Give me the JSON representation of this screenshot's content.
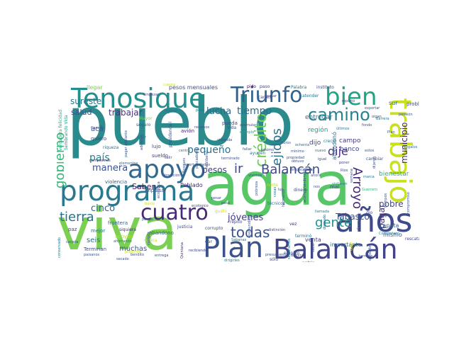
{
  "words": [
    {
      "text": "pueblo",
      "color": "#2a8a8c",
      "rot": 0
    },
    {
      "text": "agua",
      "color": "#56c667",
      "rot": 0
    },
    {
      "text": "viva",
      "color": "#7ad151",
      "rot": 0
    },
    {
      "text": "programa",
      "color": "#2a788e",
      "rot": 0
    },
    {
      "text": "trabajo",
      "color": "#c8e020",
      "rot": 1
    },
    {
      "text": "Plan",
      "color": "#3b528b",
      "rot": 0
    },
    {
      "text": "Balancán",
      "color": "#414487",
      "rot": 0
    },
    {
      "text": "años",
      "color": "#3e4a89",
      "rot": 0
    },
    {
      "text": "Tenosique",
      "color": "#21908d",
      "rot": 0
    },
    {
      "text": "Triunfo",
      "color": "#33638d",
      "rot": 0
    },
    {
      "text": "apoyo",
      "color": "#31688e",
      "rot": 0
    },
    {
      "text": "cuatro",
      "color": "#482878",
      "rot": 0
    },
    {
      "text": "bien",
      "color": "#20a486",
      "rot": 0
    },
    {
      "text": "camino",
      "color": "#26828e",
      "rot": 0
    },
    {
      "text": "crédito",
      "color": "#6ece58",
      "rot": 1
    },
    {
      "text": "ejidos",
      "color": "#2c728e",
      "rot": 1
    },
    {
      "text": "Arroyo",
      "color": "#472d7b",
      "rot": 1
    },
    {
      "text": "Balancán",
      "color": "#3e4989",
      "rot": 0
    },
    {
      "text": "gobierno",
      "color": "#35b779",
      "rot": 1
    },
    {
      "text": "tierra",
      "color": "#2d708e",
      "rot": 0
    },
    {
      "text": "todas",
      "color": "#3b528b",
      "rot": 0
    },
    {
      "text": "gente",
      "color": "#21918c",
      "rot": 0
    },
    {
      "text": "ir",
      "color": "#3e4989",
      "rot": 0
    },
    {
      "text": "dije",
      "color": "#46327e",
      "rot": 0
    },
    {
      "text": "tiempo",
      "color": "#2e6e8e",
      "rot": 0
    },
    {
      "text": "lucha",
      "color": "#30698e",
      "rot": 0
    },
    {
      "text": "pequeño",
      "color": "#2d708e",
      "rot": 0
    },
    {
      "text": "manera",
      "color": "#3b528b",
      "rot": 0
    },
    {
      "text": "país",
      "color": "#26828e",
      "rot": 0
    },
    {
      "text": "cinco",
      "color": "#31688e",
      "rot": 0
    },
    {
      "text": "jóvenes",
      "color": "#443983",
      "rot": 0
    },
    {
      "text": "pesos",
      "color": "#404688",
      "rot": 0
    },
    {
      "text": "municipio",
      "color": "#481f70",
      "rot": 1
    },
    {
      "text": "pagar",
      "color": "#472d7b",
      "rot": 1
    },
    {
      "text": "Tabasco",
      "color": "#3b528b",
      "rot": 0
    },
    {
      "text": "pobre",
      "color": "#404688",
      "rot": 0
    },
    {
      "text": "sureste",
      "color": "#2a788e",
      "rot": 0
    },
    {
      "text": "trabajar",
      "color": "#46337f",
      "rot": 0
    },
    {
      "text": "salud",
      "color": "#3e4a89",
      "rot": 0
    },
    {
      "text": "Saben",
      "color": "#471164",
      "rot": 0
    },
    {
      "text": "seis",
      "color": "#2c728e",
      "rot": 0
    },
    {
      "text": "muchas",
      "color": "#39568c",
      "rot": 0
    },
    {
      "text": "acá",
      "color": "#3b528b",
      "rot": 0
    },
    {
      "text": "dijo",
      "color": "#414487",
      "rot": 0
    },
    {
      "text": "banco",
      "color": "#414487",
      "rot": 0
    },
    {
      "text": "campo",
      "color": "#453882",
      "rot": 0
    },
    {
      "text": "región",
      "color": "#1fa188",
      "rot": 0
    },
    {
      "text": "entregar",
      "color": "#2e6f8e",
      "rot": 0
    },
    {
      "text": "Zapata",
      "color": "#355f8d",
      "rot": 0
    },
    {
      "text": "bienestar",
      "color": "#29af7f",
      "rot": 0
    },
    {
      "text": "sur",
      "color": "#2f6c8e",
      "rot": 0
    },
    {
      "text": "problema",
      "color": "#3f4788",
      "rot": 0
    },
    {
      "text": "abandonó",
      "color": "#2e6e8e",
      "rot": 1
    },
    {
      "text": "venta",
      "color": "#433e85",
      "rot": 0
    },
    {
      "text": "importante",
      "color": "#2d708e",
      "rot": 0
    },
    {
      "text": "mismo",
      "color": "#3c508b",
      "rot": 0
    },
    {
      "text": "pesos mensuales",
      "color": "#3b528b",
      "rot": 0
    },
    {
      "text": "llegar",
      "color": "#7ad151",
      "rot": 0
    },
    {
      "text": "avión",
      "color": "#481a6c",
      "rot": 0
    },
    {
      "text": "pueda",
      "color": "#3f4889",
      "rot": 0
    },
    {
      "text": "Poblado",
      "color": "#482878",
      "rot": 0
    },
    {
      "text": "mal",
      "color": "#3b528b",
      "rot": 0
    },
    {
      "text": "frontera",
      "color": "#31688e",
      "rot": 0
    },
    {
      "text": "abandono",
      "color": "#39568c",
      "rot": 0
    },
    {
      "text": "paz",
      "color": "#3e4a89",
      "rot": 0
    },
    {
      "text": "mejor",
      "color": "#2c728e",
      "rot": 0
    },
    {
      "text": "Terminan",
      "color": "#3b528b",
      "rot": 0
    },
    {
      "text": "lujo",
      "color": "#3e4989",
      "rot": 0
    },
    {
      "text": "sueldo",
      "color": "#433e85",
      "rot": 0
    },
    {
      "text": "quiero",
      "color": "#3f4788",
      "rot": 0
    },
    {
      "text": "riqueza",
      "color": "#2d708e",
      "rot": 0
    },
    {
      "text": "violencia",
      "color": "#355f8d",
      "rot": 0
    },
    {
      "text": "impulsar",
      "color": "#3b528b",
      "rot": 0
    },
    {
      "text": "apoyar",
      "color": "#b5de2b",
      "rot": 0
    },
    {
      "text": "ayuden",
      "color": "#2a788e",
      "rot": 0
    },
    {
      "text": "pido",
      "color": "#440154",
      "rot": 0
    },
    {
      "text": "Palabra",
      "color": "#2c728e",
      "rot": 0
    },
    {
      "text": "instituto",
      "color": "#3b528b",
      "rot": 0
    },
    {
      "text": "dinero",
      "color": "#3e4989",
      "rot": 0
    },
    {
      "text": "técnicos",
      "color": "#2d708e",
      "rot": 0
    },
    {
      "text": "rescatar",
      "color": "#3f4889",
      "rot": 0
    },
    {
      "text": "Compañero",
      "color": "#2a788e",
      "rot": 0
    },
    {
      "text": "empleo",
      "color": "#3b528b",
      "rot": 0
    },
    {
      "text": "vez",
      "color": "#482878",
      "rot": 0
    },
    {
      "text": "dio",
      "color": "#3e4989",
      "rot": 0
    },
    {
      "text": "paso",
      "color": "#3e4989",
      "rot": 0
    },
    {
      "text": "carros",
      "color": "#433e85",
      "rot": 0
    },
    {
      "text": "atender",
      "color": "#2c728e",
      "rot": 0
    },
    {
      "text": "dar",
      "color": "#39568c",
      "rot": 0
    },
    {
      "text": "sólo",
      "color": "#404688",
      "rot": 0
    },
    {
      "text": "corrupto",
      "color": "#3b528b",
      "rot": 0
    },
    {
      "text": "justicia",
      "color": "#3e4989",
      "rot": 0
    },
    {
      "text": "seguro",
      "color": "#3b528b",
      "rot": 0
    },
    {
      "text": "llueve",
      "color": "#2e6e8e",
      "rot": 0
    },
    {
      "text": "Mayor",
      "color": "#7ad151",
      "rot": 0
    },
    {
      "text": "presidencial",
      "color": "#3b528b",
      "rot": 1
    },
    {
      "text": "norte",
      "color": "#b5de2b",
      "rot": 0
    },
    {
      "text": "gusto",
      "color": "#d0e11c",
      "rot": 0
    },
    {
      "text": "patria",
      "color": "#3b528b",
      "rot": 0
    },
    {
      "text": "terminó",
      "color": "#2c728e",
      "rot": 0
    },
    {
      "text": "creció",
      "color": "#2a788e",
      "rot": 0
    },
    {
      "text": "repito",
      "color": "#3e4989",
      "rot": 0
    },
    {
      "text": "cambiar",
      "color": "#39568c",
      "rot": 0
    },
    {
      "text": "Guerrero",
      "color": "#35b779",
      "rot": 0
    },
    {
      "text": "Vida",
      "color": "#3b528b",
      "rot": 0
    },
    {
      "text": "Sembrando Vida",
      "color": "#1fa188",
      "rot": 1
    },
    {
      "text": "verdadera felicidad",
      "color": "#27ad81",
      "rot": 1
    },
    {
      "text": "bendito",
      "color": "#3b528b",
      "rot": 0
    },
    {
      "text": "paisanos",
      "color": "#39568c",
      "rot": 0
    },
    {
      "text": "entrega",
      "color": "#3b528b",
      "rot": 0
    },
    {
      "text": "empezar",
      "color": "#433e85",
      "rot": 0
    },
    {
      "text": "pesar",
      "color": "#3e4989",
      "rot": 0
    },
    {
      "text": "siquiera",
      "color": "#482878",
      "rot": 0
    },
    {
      "text": "nunca",
      "color": "#c8e020",
      "rot": 0
    },
    {
      "text": "fallar",
      "color": "#3b528b",
      "rot": 0
    },
    {
      "text": "ejemplo",
      "color": "#1fa188",
      "rot": 0
    },
    {
      "text": "Cancún",
      "color": "#3b528b",
      "rot": 0
    },
    {
      "text": "cumplir",
      "color": "#404688",
      "rot": 1
    },
    {
      "text": "carjeta",
      "color": "#3b528b",
      "rot": 0
    },
    {
      "text": "ahorrando",
      "color": "#2d708e",
      "rot": 0
    },
    {
      "text": "campesinos",
      "color": "#482878",
      "rot": 0
    },
    {
      "text": "centro",
      "color": "#2a788e",
      "rot": 0
    },
    {
      "text": "pasar",
      "color": "#3e4989",
      "rot": 0
    },
    {
      "text": "nuevo",
      "color": "#2c728e",
      "rot": 0
    },
    {
      "text": "pensión",
      "color": "#3b528b",
      "rot": 0
    },
    {
      "text": "conservado",
      "color": "#2a788e",
      "rot": 1
    },
    {
      "text": "obtuvo",
      "color": "#3e4989",
      "rot": 0
    },
    {
      "text": "poner",
      "color": "#433e85",
      "rot": 0
    },
    {
      "text": "Ríos",
      "color": "#3b528b",
      "rot": 0
    },
    {
      "text": "cosas",
      "color": "#2d708e",
      "rot": 1
    },
    {
      "text": "hermanos",
      "color": "#3b528b",
      "rot": 1
    },
    {
      "text": "pasa",
      "color": "#3e4989",
      "rot": 0
    },
    {
      "text": "Bosques",
      "color": "#39568c",
      "rot": 1
    },
    {
      "text": "últimos",
      "color": "#2c728e",
      "rot": 0
    },
    {
      "text": "fondo",
      "color": "#3b528b",
      "rot": 0
    },
    {
      "text": "recibiendo",
      "color": "#404688",
      "rot": 0
    },
    {
      "text": "acumular",
      "color": "#3b528b",
      "rot": 0
    },
    {
      "text": "distinción",
      "color": "#3e4989",
      "rot": 0
    },
    {
      "text": "llamada",
      "color": "#2a788e",
      "rot": 0
    },
    {
      "text": "compromiso",
      "color": "#3b528b",
      "rot": 1
    },
    {
      "text": "dominio",
      "color": "#433e85",
      "rot": 0
    },
    {
      "text": "oportunidad",
      "color": "#3b528b",
      "rot": 1
    },
    {
      "text": "cuenta",
      "color": "#d0e11c",
      "rot": 0
    },
    {
      "text": "plata",
      "color": "#3e4989",
      "rot": 0
    },
    {
      "text": "marca",
      "color": "#2c728e",
      "rot": 0
    },
    {
      "text": "adelante",
      "color": "#3b528b",
      "rot": 1
    },
    {
      "text": "elementos",
      "color": "#2d708e",
      "rot": 0
    },
    {
      "text": "pagar adelante",
      "color": "#39568c",
      "rot": 1
    },
    {
      "text": "Quintana",
      "color": "#482878",
      "rot": 1
    },
    {
      "text": "reportó",
      "color": "#3b528b",
      "rot": 0
    },
    {
      "text": "visitaron",
      "color": "#2a788e",
      "rot": 0
    },
    {
      "text": "pésimo",
      "color": "#3e4989",
      "rot": 0
    },
    {
      "text": "mínimo",
      "color": "#3b528b",
      "rot": 0
    },
    {
      "text": "regalos",
      "color": "#2c728e",
      "rot": 0
    },
    {
      "text": "exportar",
      "color": "#3b528b",
      "rot": 0
    },
    {
      "text": "tradición",
      "color": "#3e4989",
      "rot": 0
    },
    {
      "text": "barco",
      "color": "#d0e11c",
      "rot": 0
    },
    {
      "text": "ahora",
      "color": "#3b528b",
      "rot": 0
    },
    {
      "text": "oigan",
      "color": "#3e4989",
      "rot": 0
    },
    {
      "text": "Plan",
      "color": "#39568c",
      "rot": 0
    },
    {
      "text": "plátano",
      "color": "#2a788e",
      "rot": 1
    },
    {
      "text": "Seca",
      "color": "#3b528b",
      "rot": 1
    },
    {
      "text": "deseado",
      "color": "#2c728e",
      "rot": 1
    },
    {
      "text": "tiempos",
      "color": "#3b528b",
      "rot": 0
    },
    {
      "text": "vivienda",
      "color": "#3e4989",
      "rot": 1
    },
    {
      "text": "pobreza",
      "color": "#3b528b",
      "rot": 1
    },
    {
      "text": "ecológica",
      "color": "#404688",
      "rot": 0
    },
    {
      "text": "secado",
      "color": "#3b528b",
      "rot": 0
    },
    {
      "text": "maíz",
      "color": "#2c728e",
      "rot": 0
    },
    {
      "text": "termine",
      "color": "#3e4989",
      "rot": 0
    },
    {
      "text": "empecemos",
      "color": "#3b528b",
      "rot": 0
    },
    {
      "text": "estos",
      "color": "#39568c",
      "rot": 0
    },
    {
      "text": "Barrera",
      "color": "#2a788e",
      "rot": 1
    },
    {
      "text": "semana",
      "color": "#3b528b",
      "rot": 0
    },
    {
      "text": "luz",
      "color": "#3e4989",
      "rot": 0
    },
    {
      "text": "nos",
      "color": "#3b528b",
      "rot": 0
    },
    {
      "text": "propiedad",
      "color": "#3b528b",
      "rot": 1
    },
    {
      "text": "decir",
      "color": "#d0e11c",
      "rot": 0
    },
    {
      "text": "dan",
      "color": "#3b528b",
      "rot": 0
    },
    {
      "text": "puros",
      "color": "#39568c",
      "rot": 0
    },
    {
      "text": "Sabanas",
      "color": "#2c728e",
      "rot": 1
    },
    {
      "text": "sacar",
      "color": "#3b528b",
      "rot": 0
    },
    {
      "text": "igual",
      "color": "#3e4989",
      "rot": 0
    },
    {
      "text": "dirigirles",
      "color": "#2a788e",
      "rot": 1
    },
    {
      "text": "pescadores",
      "color": "#3b528b",
      "rot": 1
    },
    {
      "text": "neoliberal",
      "color": "#3e4989",
      "rot": 0
    },
    {
      "text": "ecológico",
      "color": "#3b528b",
      "rot": 0
    },
    {
      "text": "pongo",
      "color": "#39568c",
      "rot": 0
    },
    {
      "text": "pregunta",
      "color": "#d0e11c",
      "rot": 0
    },
    {
      "text": "vivimos",
      "color": "#3b528b",
      "rot": 0
    },
    {
      "text": "ochenta",
      "color": "#2c728e",
      "rot": 0
    },
    {
      "text": "presupuesto",
      "color": "#3b528b",
      "rot": 1
    },
    {
      "text": "acompañándonos",
      "color": "#3e4989",
      "rot": 1
    },
    {
      "text": "sembramos",
      "color": "#2a788e",
      "rot": 0
    },
    {
      "text": "recursos",
      "color": "#3b528b",
      "rot": 0
    },
    {
      "text": "dijeron",
      "color": "#3e4989",
      "rot": 1
    },
    {
      "text": "oportunidades",
      "color": "#3b528b",
      "rot": 0
    },
    {
      "text": "tenemos",
      "color": "#39568c",
      "rot": 0
    },
    {
      "text": "olvidados",
      "color": "#3b528b",
      "rot": 1
    },
    {
      "text": "pese",
      "color": "#2c728e",
      "rot": 0
    },
    {
      "text": "salir",
      "color": "#3e4989",
      "rot": 0
    },
    {
      "text": "terminado",
      "color": "#3b528b",
      "rot": 1
    },
    {
      "text": "enemigos",
      "color": "#3b528b",
      "rot": 0
    },
    {
      "text": "libertad",
      "color": "#2a788e",
      "rot": 0
    },
    {
      "text": "sino",
      "color": "#3b528b",
      "rot": 0
    }
  ]
}
